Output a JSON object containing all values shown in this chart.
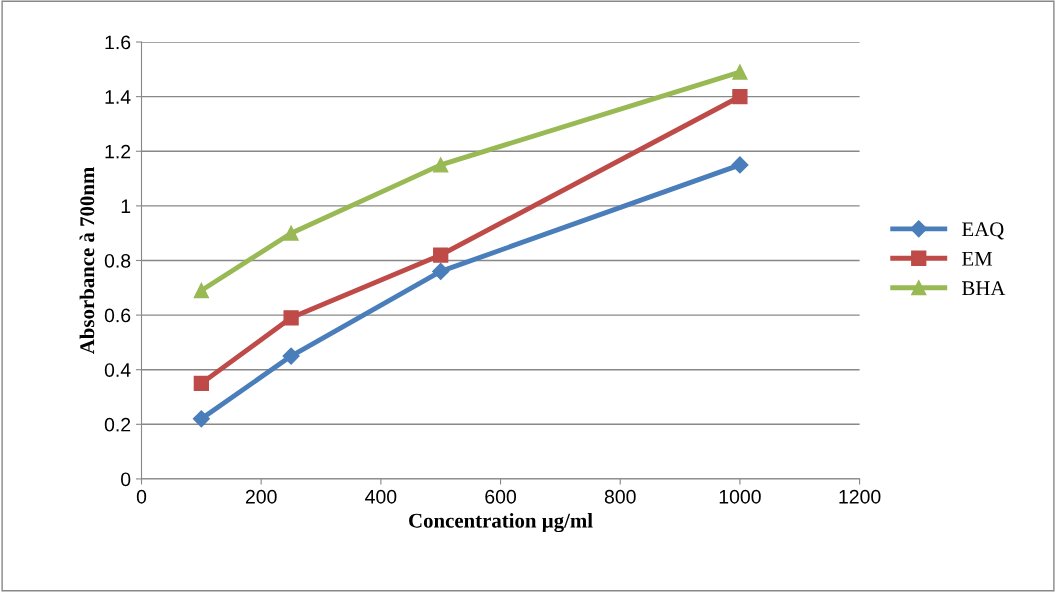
{
  "chart_data": {
    "type": "line",
    "xlabel": "Concentration µg/ml",
    "ylabel": "Absorbance à 700nm",
    "x": [
      100,
      250,
      500,
      1000
    ],
    "series": [
      {
        "name": "EAQ",
        "color": "#4a7ebb",
        "marker": "diamond",
        "values": [
          0.22,
          0.45,
          0.76,
          1.15
        ]
      },
      {
        "name": "EM",
        "color": "#be4b48",
        "marker": "square",
        "values": [
          0.35,
          0.59,
          0.82,
          1.4
        ]
      },
      {
        "name": "BHA",
        "color": "#98b954",
        "marker": "triangle",
        "values": [
          0.69,
          0.9,
          1.15,
          1.49
        ]
      }
    ],
    "xlim": [
      0,
      1200
    ],
    "xticks": [
      0,
      200,
      400,
      600,
      800,
      1000,
      1200
    ],
    "ylim": [
      0,
      1.6
    ],
    "yticks": [
      0,
      0.2,
      0.4,
      0.6,
      0.8,
      1,
      1.2,
      1.4,
      1.6
    ],
    "grid": "y",
    "legend": "right",
    "line_style": "solid"
  }
}
